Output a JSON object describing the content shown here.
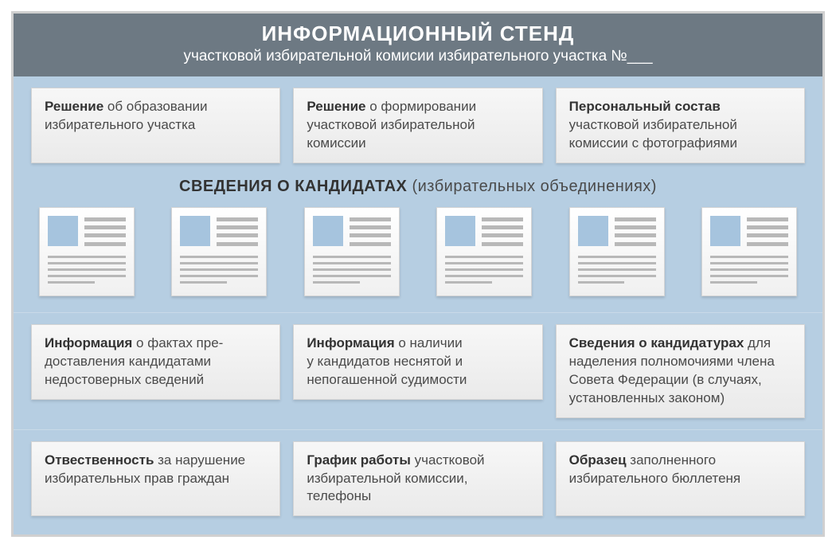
{
  "header": {
    "title": "ИНФОРМАЦИОННЫЙ СТЕНД",
    "subtitle": "участковой избирательной комисии избирательного участка №___"
  },
  "row1": [
    {
      "bold": "Решение",
      "text": " об образовании избирательного участка"
    },
    {
      "bold": "Решение",
      "text": " о формировании участковой избирательной комиссии"
    },
    {
      "bold": "Персональный состав",
      "text": " участковой избирательной комиссии с фотографиями"
    }
  ],
  "candidates_title": {
    "bold": "СВЕДЕНИЯ О КАНДИДАТАХ",
    "text": " (избирательных объединениях)"
  },
  "doc_count": 6,
  "row2": [
    {
      "bold": "Информация",
      "text": " о фактах пре­доставления кандидатами недостоверных сведений"
    },
    {
      "bold": "Информация",
      "text": " о наличии у кандидатов неснятой и непогашенной судимости"
    },
    {
      "bold": "Сведения о кандидатурах",
      "text": " для наделения полномочиями члена Совета Федерации (в случаях, установленных законом)"
    }
  ],
  "row3": [
    {
      "bold": "Отвественность",
      "text": " за нарушение избиратель­ных прав граждан"
    },
    {
      "bold": "График работы",
      "text": " участковой избирательной комиссии, телефоны"
    },
    {
      "bold": "Образец",
      "text": " заполненного избирательного бюллетеня"
    }
  ],
  "colors": {
    "header_bg": "#6d7983",
    "board_bg": "#b6cee2",
    "card_bg_top": "#f7f7f7",
    "card_bg_bottom": "#eaeaea",
    "doc_img": "#a6c4de",
    "line": "#b8b8b8",
    "border": "#d0d0d0"
  }
}
